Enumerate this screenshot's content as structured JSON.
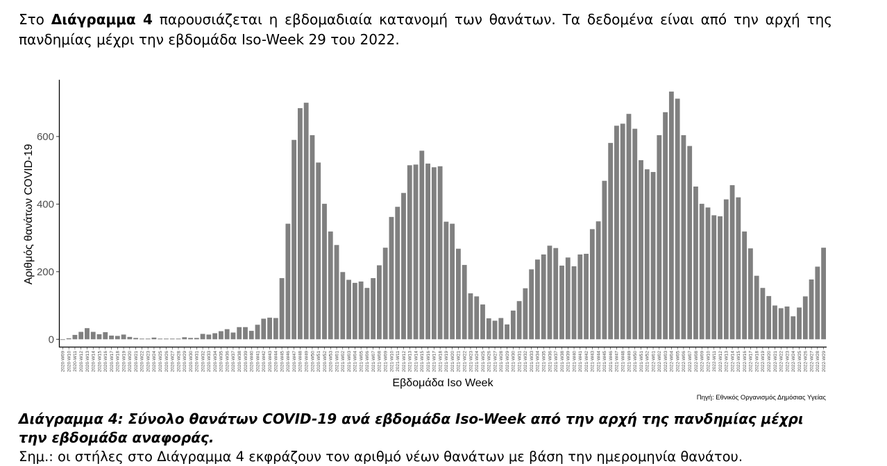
{
  "intro": {
    "prefix": "Στο ",
    "bold": "Διάγραμμα 4",
    "text": " παρουσιάζεται η εβδομαδιαία κατανομή των θανάτων.  Τα δεδομένα είναι από την αρχή της πανδημίας μέχρι την εβδομάδα Iso-Week 29 του 2022."
  },
  "caption": "Διάγραμμα 4: Σύνολο θανάτων COVID-19 ανά εβδομάδα Iso-Week από την αρχή της πανδημίας μέχρι την εβδομάδα αναφοράς.",
  "note": "Σημ.: οι στήλες στο Διάγραμμα 4 εκφράζουν τον αριθμό νέων θανάτων με βάση την ημερομηνία θανάτου.",
  "chart_data": {
    "type": "bar",
    "title": "",
    "xlabel": "Εβδομάδα Iso Week",
    "ylabel": "Αριθμός θανάτων COVID-19",
    "source": "Πηγή: Εθνικός Οργανισμός Δημόσιας Υγείας",
    "ylim": [
      -22,
      768
    ],
    "yticks": [
      0,
      200,
      400,
      600
    ],
    "grid": false,
    "bar_color": "#808080",
    "categories": [
      "2020-W09",
      "2020-W10",
      "2020-W11",
      "2020-W12",
      "2020-W13",
      "2020-W14",
      "2020-W15",
      "2020-W16",
      "2020-W17",
      "2020-W18",
      "2020-W19",
      "2020-W20",
      "2020-W21",
      "2020-W22",
      "2020-W23",
      "2020-W24",
      "2020-W25",
      "2020-W26",
      "2020-W27",
      "2020-W28",
      "2020-W29",
      "2020-W30",
      "2020-W31",
      "2020-W32",
      "2020-W33",
      "2020-W34",
      "2020-W35",
      "2020-W36",
      "2020-W37",
      "2020-W38",
      "2020-W39",
      "2020-W40",
      "2020-W41",
      "2020-W42",
      "2020-W43",
      "2020-W44",
      "2020-W45",
      "2020-W46",
      "2020-W47",
      "2020-W48",
      "2020-W49",
      "2020-W50",
      "2020-W51",
      "2020-W52",
      "2020-W53",
      "2021-W01",
      "2021-W02",
      "2021-W03",
      "2021-W04",
      "2021-W05",
      "2021-W06",
      "2021-W07",
      "2021-W08",
      "2021-W09",
      "2021-W10",
      "2021-W11",
      "2021-W12",
      "2021-W13",
      "2021-W14",
      "2021-W15",
      "2021-W16",
      "2021-W17",
      "2021-W18",
      "2021-W19",
      "2021-W20",
      "2021-W21",
      "2021-W22",
      "2021-W23",
      "2021-W24",
      "2021-W25",
      "2021-W26",
      "2021-W27",
      "2021-W28",
      "2021-W29",
      "2021-W30",
      "2021-W31",
      "2021-W32",
      "2021-W33",
      "2021-W34",
      "2021-W35",
      "2021-W36",
      "2021-W37",
      "2021-W38",
      "2021-W39",
      "2021-W40",
      "2021-W41",
      "2021-W42",
      "2021-W43",
      "2021-W44",
      "2021-W45",
      "2021-W46",
      "2021-W47",
      "2021-W48",
      "2021-W49",
      "2021-W50",
      "2021-W51",
      "2021-W52",
      "2022-W01",
      "2022-W02",
      "2022-W03",
      "2022-W04",
      "2022-W05",
      "2022-W06",
      "2022-W07",
      "2022-W08",
      "2022-W09",
      "2022-W10",
      "2022-W11",
      "2022-W12",
      "2022-W13",
      "2022-W14",
      "2022-W15",
      "2022-W16",
      "2022-W17",
      "2022-W18",
      "2022-W19",
      "2022-W20",
      "2022-W21",
      "2022-W22",
      "2022-W23",
      "2022-W24",
      "2022-W25",
      "2022-W26",
      "2022-W27",
      "2022-W28",
      "2022-W29"
    ],
    "values": [
      0,
      3,
      13,
      22,
      33,
      22,
      15,
      21,
      11,
      10,
      14,
      7,
      4,
      2,
      2,
      5,
      2,
      2,
      2,
      2,
      6,
      4,
      4,
      16,
      14,
      18,
      24,
      30,
      20,
      36,
      36,
      25,
      43,
      61,
      64,
      63,
      181,
      342,
      590,
      684,
      700,
      604,
      523,
      401,
      319,
      279,
      199,
      176,
      167,
      171,
      152,
      181,
      219,
      271,
      362,
      392,
      433,
      515,
      517,
      558,
      520,
      509,
      512,
      348,
      342,
      268,
      220,
      136,
      127,
      103,
      62,
      55,
      63,
      44,
      85,
      113,
      151,
      207,
      236,
      251,
      277,
      270,
      218,
      242,
      216,
      251,
      253,
      326,
      349,
      469,
      581,
      632,
      638,
      667,
      623,
      530,
      503,
      495,
      604,
      672,
      733,
      712,
      604,
      572,
      452,
      401,
      390,
      367,
      364,
      414,
      456,
      420,
      319,
      269,
      188,
      152,
      128,
      100,
      92,
      97,
      68,
      94,
      127,
      177,
      215,
      271
    ]
  }
}
